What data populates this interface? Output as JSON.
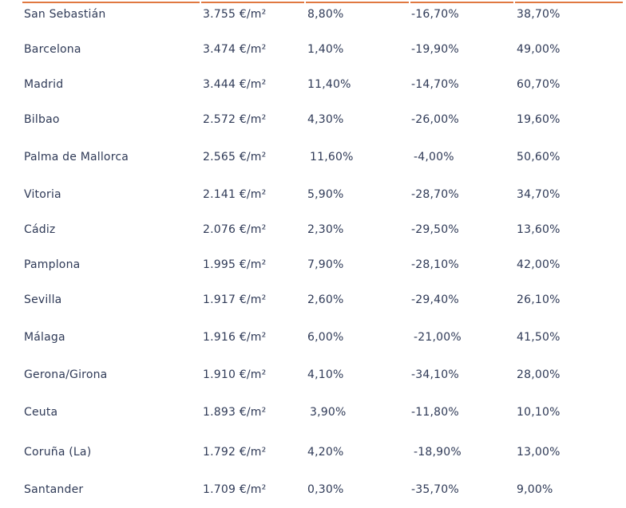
{
  "rows": [
    {
      "city": "San Sebastián",
      "price": "3.755 €/m²",
      "col_a": "8,80%",
      "col_b": "-16,70%",
      "col_c": "38,70%"
    },
    {
      "city": "Barcelona",
      "price": "3.474 €/m²",
      "col_a": "1,40%",
      "col_b": "-19,90%",
      "col_c": "49,00%"
    },
    {
      "city": "Madrid",
      "price": "3.444 €/m²",
      "col_a": "11,40%",
      "col_b": "-14,70%",
      "col_c": "60,70%"
    },
    {
      "city": "Bilbao",
      "price": "2.572 €/m²",
      "col_a": "4,30%",
      "col_b": "-26,00%",
      "col_c": "19,60%"
    },
    {
      "city": "Palma de Mallorca",
      "price": "2.565 €/m²",
      "col_a": "11,60%",
      "col_b": "-4,00%",
      "col_c": "50,60%"
    },
    {
      "city": "Vitoria",
      "price": "2.141 €/m²",
      "col_a": "5,90%",
      "col_b": "-28,70%",
      "col_c": "34,70%"
    },
    {
      "city": "Cádiz",
      "price": "2.076 €/m²",
      "col_a": "2,30%",
      "col_b": "-29,50%",
      "col_c": "13,60%"
    },
    {
      "city": "Pamplona",
      "price": "1.995 €/m²",
      "col_a": "7,90%",
      "col_b": "-28,10%",
      "col_c": "42,00%"
    },
    {
      "city": "Sevilla",
      "price": "1.917 €/m²",
      "col_a": "2,60%",
      "col_b": "-29,40%",
      "col_c": "26,10%"
    },
    {
      "city": "Málaga",
      "price": "1.916 €/m²",
      "col_a": "6,00%",
      "col_b": "-21,00%",
      "col_c": "41,50%"
    },
    {
      "city": "Gerona/Girona",
      "price": "1.910 €/m²",
      "col_a": "4,10%",
      "col_b": "-34,10%",
      "col_c": "28,00%"
    },
    {
      "city": "Ceuta",
      "price": "1.893 €/m²",
      "col_a": "3,90%",
      "col_b": "-11,80%",
      "col_c": "10,10%"
    },
    {
      "city": "Coruña (La)",
      "price": "1.792 €/m²",
      "col_a": "4,20%",
      "col_b": "-18,90%",
      "col_c": "13,00%"
    },
    {
      "city": "Santander",
      "price": "1.709 €/m²",
      "col_a": "0,30%",
      "col_b": "-35,70%",
      "col_c": "9,00%"
    }
  ],
  "colors": {
    "text": "#2f3a57",
    "accent_rule": "#e07840"
  }
}
